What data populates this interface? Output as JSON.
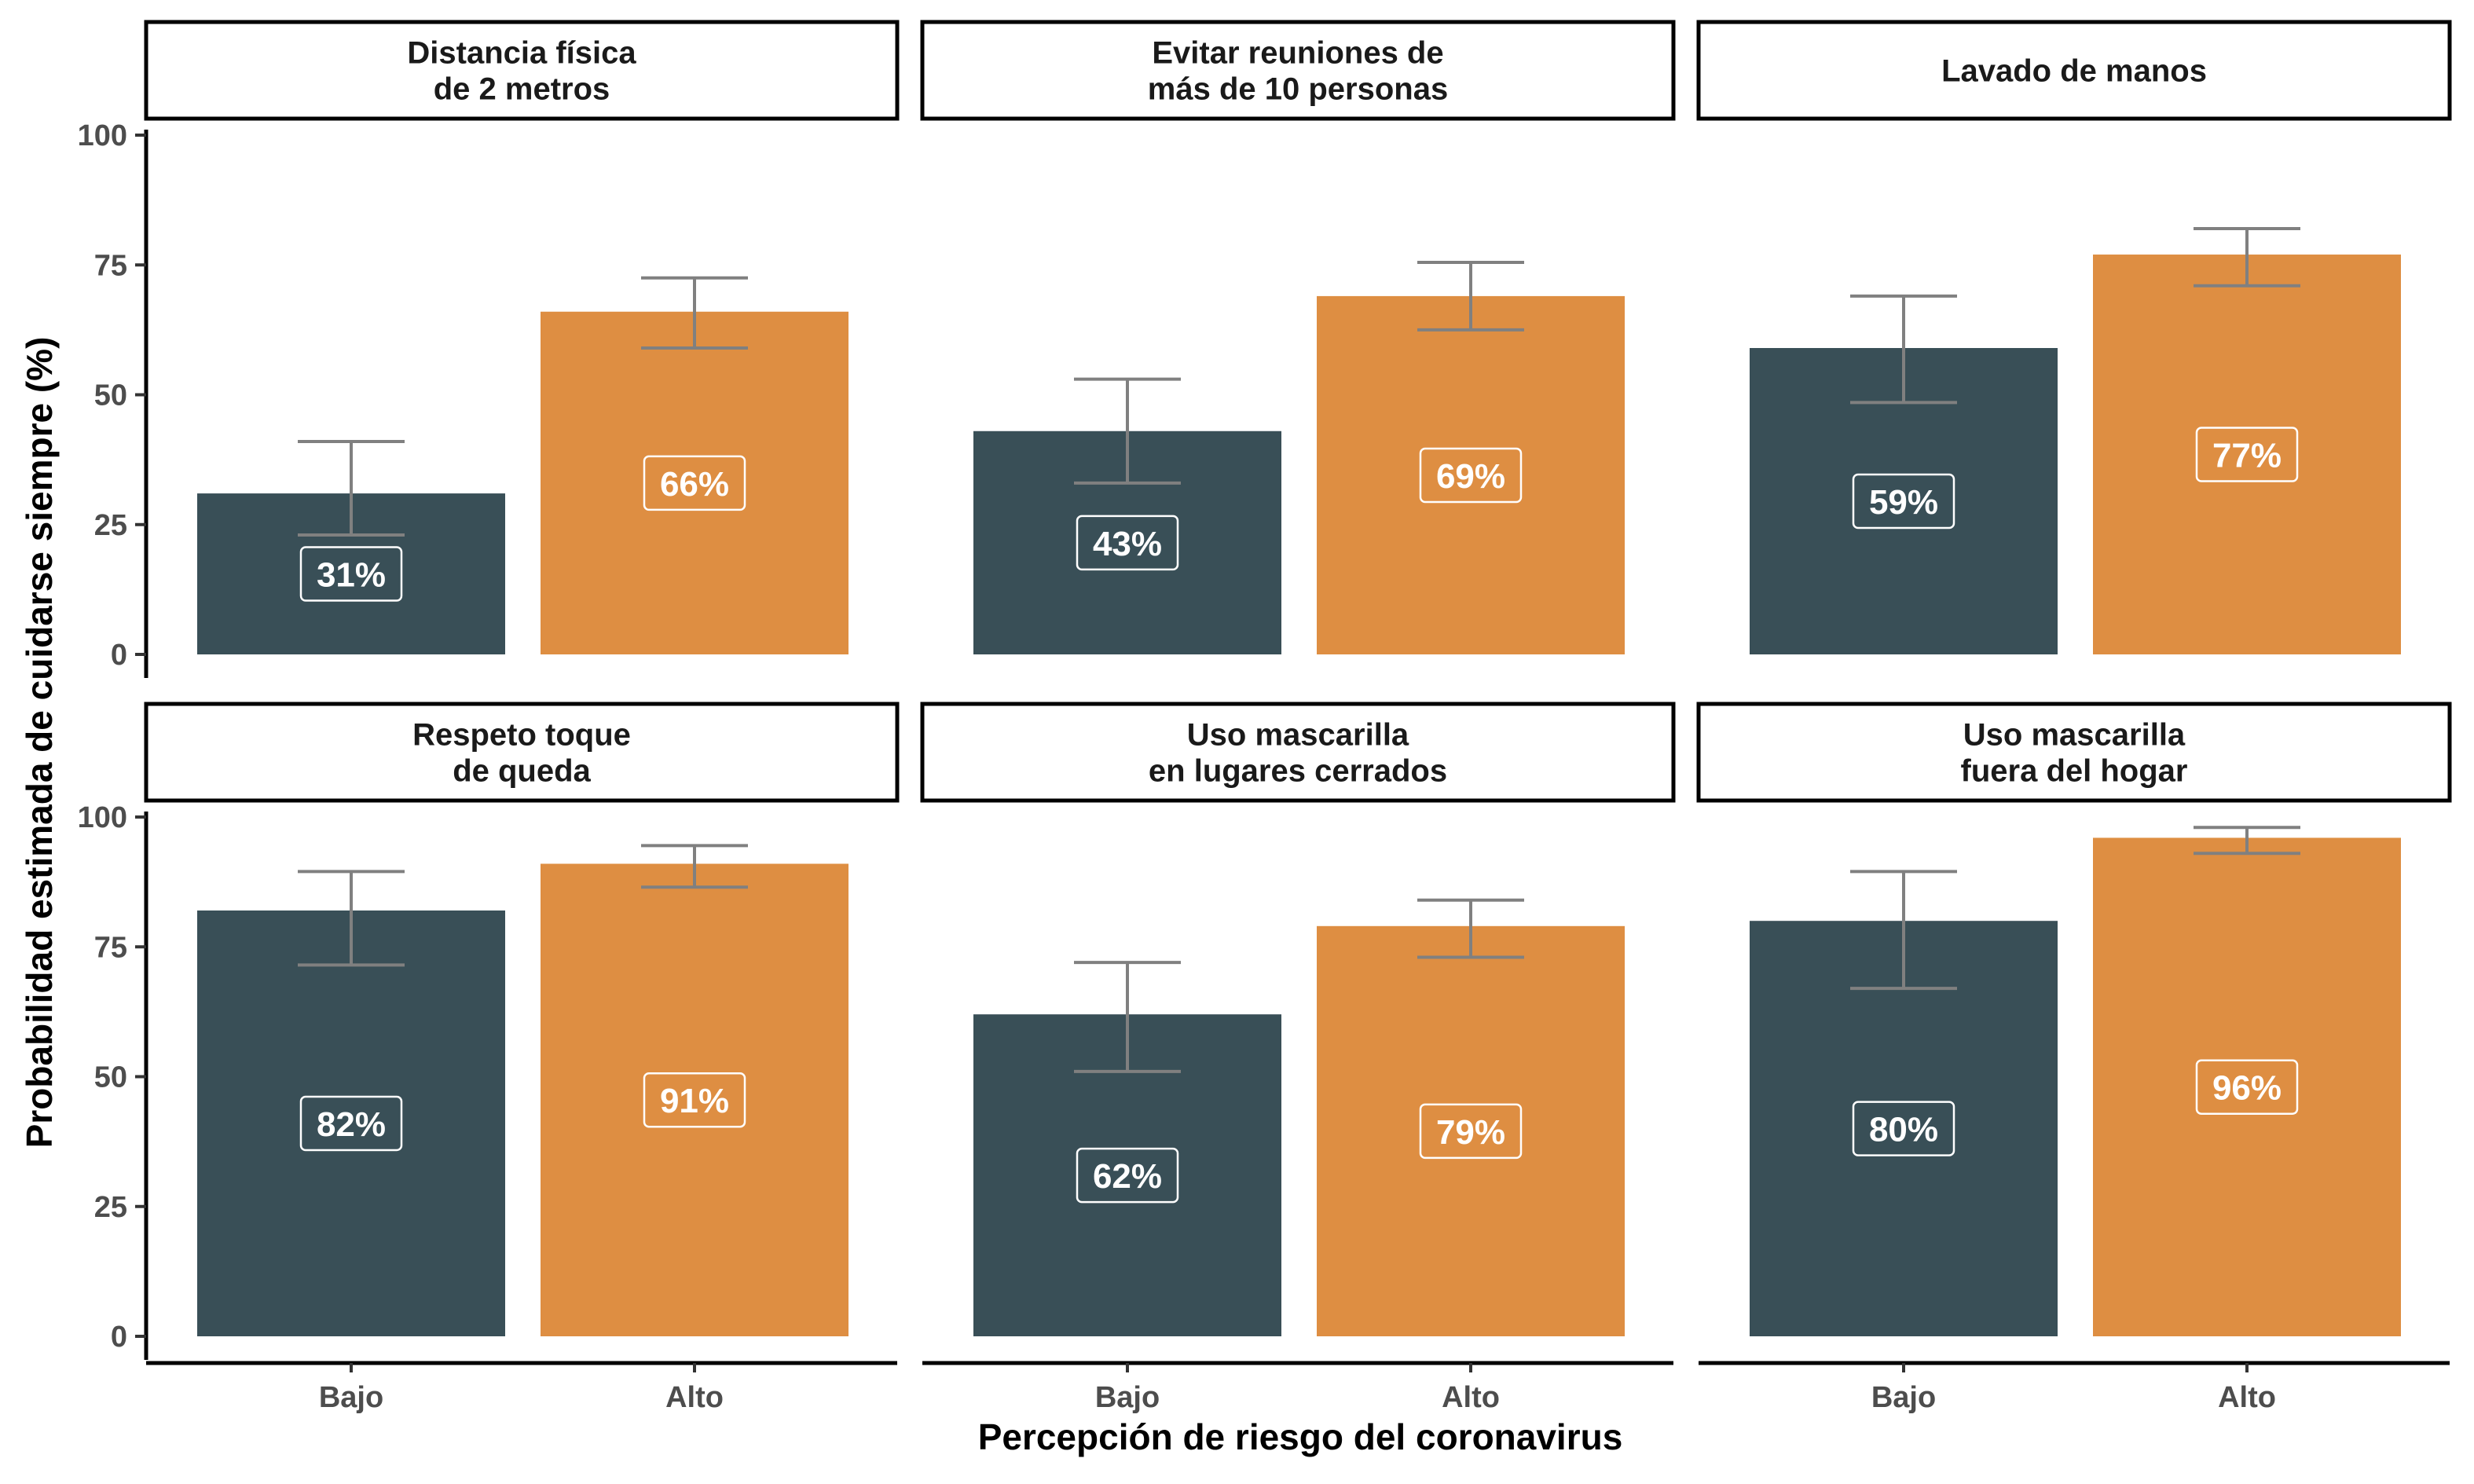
{
  "chart_data": {
    "type": "bar",
    "xlabel": "Percepción de riesgo del coronavirus",
    "ylabel": "Probabilidad estimada de cuidarse siempre (%)",
    "ylim": [
      0,
      100
    ],
    "yticks": [
      0,
      25,
      50,
      75,
      100
    ],
    "categories": [
      "Bajo",
      "Alto"
    ],
    "colors": {
      "Bajo": "#394f57",
      "Alto": "#de8e42",
      "errorbar": "#808080"
    },
    "grid": false,
    "legend": "none",
    "facets": [
      {
        "title": [
          "Distancia física",
          "de 2 metros"
        ],
        "values": [
          31,
          66
        ],
        "labels": [
          "31%",
          "66%"
        ],
        "ci_low": [
          23,
          59
        ],
        "ci_high": [
          41,
          72.5
        ]
      },
      {
        "title": [
          "Evitar reuniones de",
          "más de 10 personas"
        ],
        "values": [
          43,
          69
        ],
        "labels": [
          "43%",
          "69%"
        ],
        "ci_low": [
          33,
          62.5
        ],
        "ci_high": [
          53,
          75.5
        ]
      },
      {
        "title": [
          "Lavado de manos"
        ],
        "values": [
          59,
          77
        ],
        "labels": [
          "59%",
          "77%"
        ],
        "ci_low": [
          48.5,
          71
        ],
        "ci_high": [
          69,
          82
        ]
      },
      {
        "title": [
          "Respeto toque",
          "de queda"
        ],
        "values": [
          82,
          91
        ],
        "labels": [
          "82%",
          "91%"
        ],
        "ci_low": [
          71.5,
          86.5
        ],
        "ci_high": [
          89.5,
          94.5
        ]
      },
      {
        "title": [
          "Uso mascarilla",
          "en lugares cerrados"
        ],
        "values": [
          62,
          79
        ],
        "labels": [
          "62%",
          "79%"
        ],
        "ci_low": [
          51,
          73
        ],
        "ci_high": [
          72,
          84
        ]
      },
      {
        "title": [
          "Uso mascarilla",
          "fuera del hogar"
        ],
        "values": [
          80,
          96
        ],
        "labels": [
          "80%",
          "96%"
        ],
        "ci_low": [
          67,
          93
        ],
        "ci_high": [
          89.5,
          98
        ]
      }
    ]
  }
}
